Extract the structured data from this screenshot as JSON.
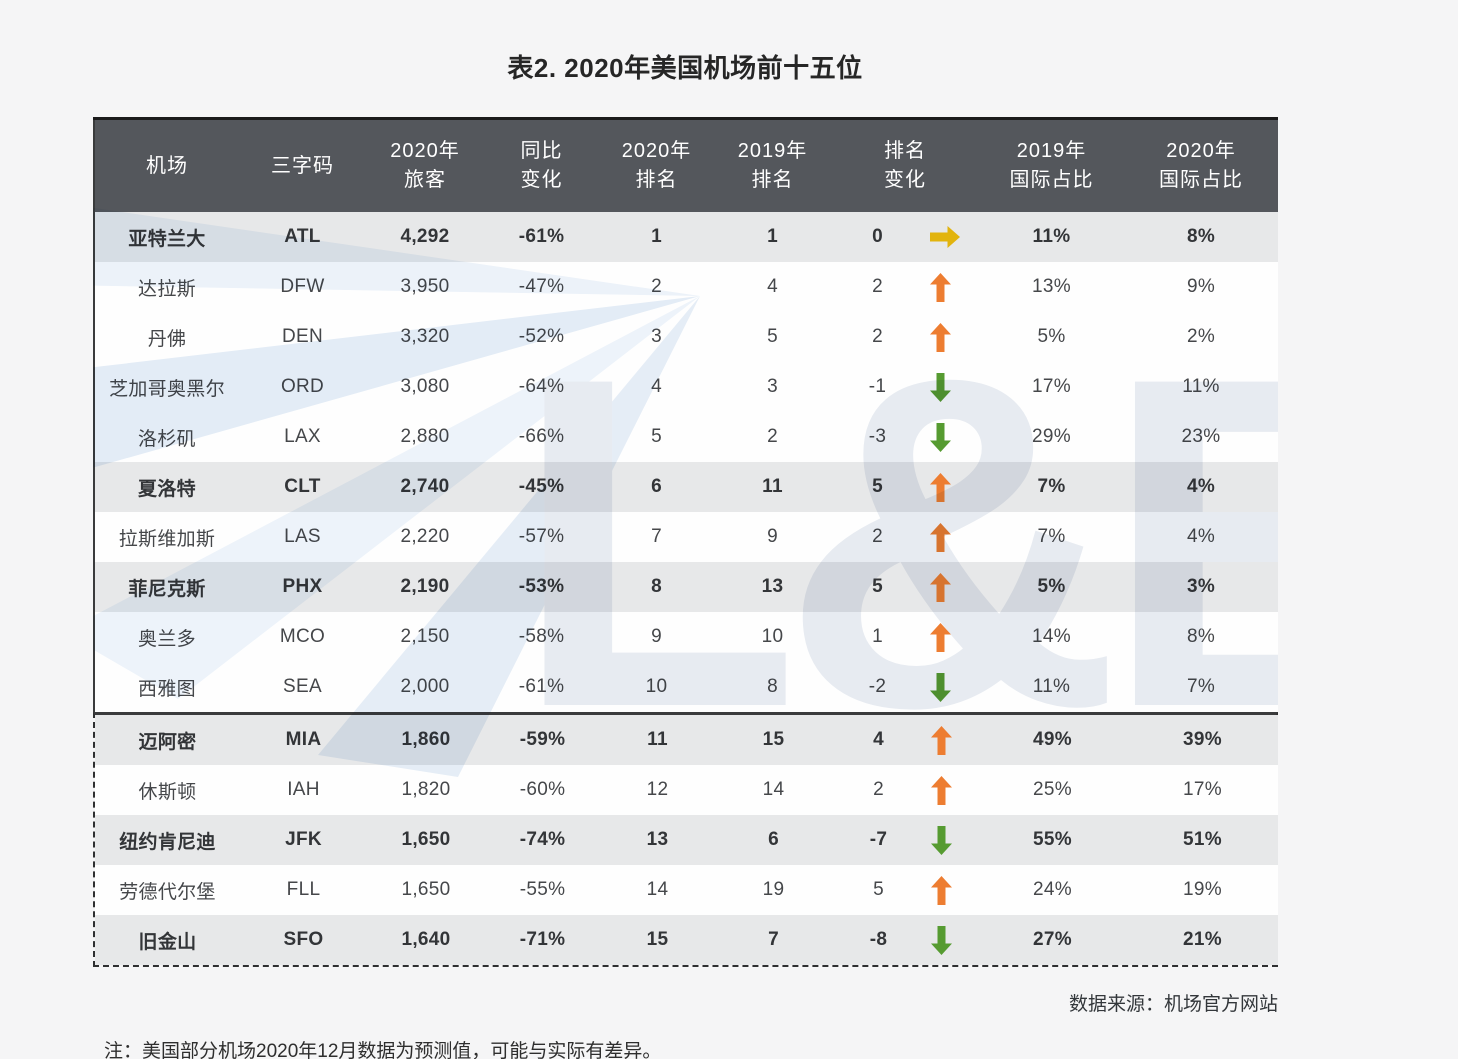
{
  "title": "表2. 2020年美国机场前十五位",
  "watermark": "L&B",
  "source": "数据来源：机场官方网站",
  "note": "注：美国部分机场2020年12月数据为预测值，可能与实际有差异。",
  "colors": {
    "up_arrow": "#ED7D31",
    "down_arrow": "#569B31",
    "flat_arrow": "#E2B40E",
    "header_bg": "#54575C",
    "emphasized_row_bg": "#E7E8E9",
    "watermark_blue": "#E6EEF7"
  },
  "chart_data": {
    "type": "table",
    "title": "表2. 2020年美国机场前十五位",
    "columns": [
      "机场",
      "三字码",
      "2020年\n旅客",
      "同比\n变化",
      "2020年\n排名",
      "2019年\n排名",
      "排名\n变化",
      "2019年\n国际占比",
      "2020年\n国际占比"
    ],
    "rows": [
      {
        "airport": "亚特兰大",
        "code": "ATL",
        "passengers": "4,292",
        "yoy": "-61%",
        "rank2020": "1",
        "rank2019": "1",
        "change": "0",
        "direction": "flat",
        "intl2019": "11%",
        "intl2020": "8%",
        "emphasized": true
      },
      {
        "airport": "达拉斯",
        "code": "DFW",
        "passengers": "3,950",
        "yoy": "-47%",
        "rank2020": "2",
        "rank2019": "4",
        "change": "2",
        "direction": "up",
        "intl2019": "13%",
        "intl2020": "9%",
        "emphasized": false
      },
      {
        "airport": "丹佛",
        "code": "DEN",
        "passengers": "3,320",
        "yoy": "-52%",
        "rank2020": "3",
        "rank2019": "5",
        "change": "2",
        "direction": "up",
        "intl2019": "5%",
        "intl2020": "2%",
        "emphasized": false
      },
      {
        "airport": "芝加哥奥黑尔",
        "code": "ORD",
        "passengers": "3,080",
        "yoy": "-64%",
        "rank2020": "4",
        "rank2019": "3",
        "change": "-1",
        "direction": "down",
        "intl2019": "17%",
        "intl2020": "11%",
        "emphasized": false
      },
      {
        "airport": "洛杉矶",
        "code": "LAX",
        "passengers": "2,880",
        "yoy": "-66%",
        "rank2020": "5",
        "rank2019": "2",
        "change": "-3",
        "direction": "down",
        "intl2019": "29%",
        "intl2020": "23%",
        "emphasized": false
      },
      {
        "airport": "夏洛特",
        "code": "CLT",
        "passengers": "2,740",
        "yoy": "-45%",
        "rank2020": "6",
        "rank2019": "11",
        "change": "5",
        "direction": "up",
        "intl2019": "7%",
        "intl2020": "4%",
        "emphasized": true
      },
      {
        "airport": "拉斯维加斯",
        "code": "LAS",
        "passengers": "2,220",
        "yoy": "-57%",
        "rank2020": "7",
        "rank2019": "9",
        "change": "2",
        "direction": "up",
        "intl2019": "7%",
        "intl2020": "4%",
        "emphasized": false
      },
      {
        "airport": "菲尼克斯",
        "code": "PHX",
        "passengers": "2,190",
        "yoy": "-53%",
        "rank2020": "8",
        "rank2019": "13",
        "change": "5",
        "direction": "up",
        "intl2019": "5%",
        "intl2020": "3%",
        "emphasized": true
      },
      {
        "airport": "奥兰多",
        "code": "MCO",
        "passengers": "2,150",
        "yoy": "-58%",
        "rank2020": "9",
        "rank2019": "10",
        "change": "1",
        "direction": "up",
        "intl2019": "14%",
        "intl2020": "8%",
        "emphasized": false
      },
      {
        "airport": "西雅图",
        "code": "SEA",
        "passengers": "2,000",
        "yoy": "-61%",
        "rank2020": "10",
        "rank2019": "8",
        "change": "-2",
        "direction": "down",
        "intl2019": "11%",
        "intl2020": "7%",
        "emphasized": false
      },
      {
        "airport": "迈阿密",
        "code": "MIA",
        "passengers": "1,860",
        "yoy": "-59%",
        "rank2020": "11",
        "rank2019": "15",
        "change": "4",
        "direction": "up",
        "intl2019": "49%",
        "intl2020": "39%",
        "emphasized": true
      },
      {
        "airport": "休斯顿",
        "code": "IAH",
        "passengers": "1,820",
        "yoy": "-60%",
        "rank2020": "12",
        "rank2019": "14",
        "change": "2",
        "direction": "up",
        "intl2019": "25%",
        "intl2020": "17%",
        "emphasized": false
      },
      {
        "airport": "纽约肯尼迪",
        "code": "JFK",
        "passengers": "1,650",
        "yoy": "-74%",
        "rank2020": "13",
        "rank2019": "6",
        "change": "-7",
        "direction": "down",
        "intl2019": "55%",
        "intl2020": "51%",
        "emphasized": true
      },
      {
        "airport": "劳德代尔堡",
        "code": "FLL",
        "passengers": "1,650",
        "yoy": "-55%",
        "rank2020": "14",
        "rank2019": "19",
        "change": "5",
        "direction": "up",
        "intl2019": "24%",
        "intl2020": "19%",
        "emphasized": false
      },
      {
        "airport": "旧金山",
        "code": "SFO",
        "passengers": "1,640",
        "yoy": "-71%",
        "rank2020": "15",
        "rank2019": "7",
        "change": "-8",
        "direction": "down",
        "intl2019": "27%",
        "intl2020": "21%",
        "emphasized": true
      }
    ],
    "source": "数据来源：机场官方网站",
    "note": "注：美国部分机场2020年12月数据为预测值，可能与实际有差异。"
  }
}
